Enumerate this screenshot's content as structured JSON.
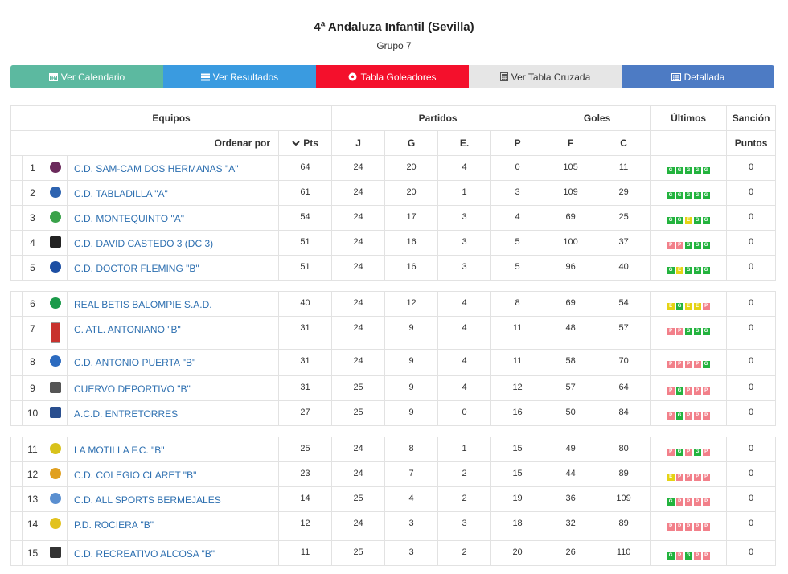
{
  "header": {
    "title": "4ª Andaluza Infantil (Sevilla)",
    "subtitle": "Grupo 7"
  },
  "buttons": [
    {
      "label": "Ver Calendario",
      "icon": "calendar-icon",
      "color": "#5cb9a0"
    },
    {
      "label": "Ver Resultados",
      "icon": "list-icon",
      "color": "#3a9be0"
    },
    {
      "label": "Tabla Goleadores",
      "icon": "soccer-ball-icon",
      "color": "#f4102c"
    },
    {
      "label": "Ver Tabla Cruzada",
      "icon": "calculator-icon",
      "color": "#e6e6e6"
    },
    {
      "label": "Detallada",
      "icon": "list-alt-icon",
      "color": "#4d7bc4"
    }
  ],
  "table": {
    "group_headers": {
      "equipos": "Equipos",
      "partidos": "Partidos",
      "goles": "Goles",
      "ultimos": "Últimos",
      "sancion": "Sanción"
    },
    "columns": {
      "ordenar": "Ordenar por",
      "pts": "Pts",
      "j": "J",
      "g": "G",
      "e": "E.",
      "p": "P",
      "f": "F",
      "c": "C",
      "puntos": "Puntos"
    },
    "rows": [
      {
        "pos": "1",
        "name": "C.D. SAM-CAM DOS HERMANAS \"A\"",
        "pts": "64",
        "j": "24",
        "g": "20",
        "e": "4",
        "p": "0",
        "f": "105",
        "c": "11",
        "last": [
          "G",
          "G",
          "G",
          "G",
          "G"
        ],
        "sancion": "0",
        "crest_color": "#6b2a5c"
      },
      {
        "pos": "2",
        "name": "C.D. TABLADILLA \"A\"",
        "pts": "61",
        "j": "24",
        "g": "20",
        "e": "1",
        "p": "3",
        "f": "109",
        "c": "29",
        "last": [
          "G",
          "G",
          "G",
          "G",
          "G"
        ],
        "sancion": "0",
        "crest_color": "#2d63b0"
      },
      {
        "pos": "3",
        "name": "C.D. MONTEQUINTO \"A\"",
        "pts": "54",
        "j": "24",
        "g": "17",
        "e": "3",
        "p": "4",
        "f": "69",
        "c": "25",
        "last": [
          "G",
          "G",
          "E",
          "G",
          "G"
        ],
        "sancion": "0",
        "crest_color": "#3aa24a"
      },
      {
        "pos": "4",
        "name": "C.D. DAVID CASTEDO 3 (DC 3)",
        "pts": "51",
        "j": "24",
        "g": "16",
        "e": "3",
        "p": "5",
        "f": "100",
        "c": "37",
        "last": [
          "P",
          "P",
          "G",
          "G",
          "G"
        ],
        "sancion": "0",
        "crest_color": "#222222"
      },
      {
        "pos": "5",
        "name": "C.D. DOCTOR FLEMING \"B\"",
        "pts": "51",
        "j": "24",
        "g": "16",
        "e": "3",
        "p": "5",
        "f": "96",
        "c": "40",
        "last": [
          "G",
          "E",
          "G",
          "G",
          "G"
        ],
        "sancion": "0",
        "crest_color": "#1d4fa3"
      },
      {
        "pos": "6",
        "name": "REAL BETIS BALOMPIE S.A.D.",
        "pts": "40",
        "j": "24",
        "g": "12",
        "e": "4",
        "p": "8",
        "f": "69",
        "c": "54",
        "last": [
          "E",
          "G",
          "E",
          "E",
          "P"
        ],
        "sancion": "0",
        "crest_color": "#1b9a4a"
      },
      {
        "pos": "7",
        "name": "C. ATL. ANTONIANO \"B\"",
        "pts": "31",
        "j": "24",
        "g": "9",
        "e": "4",
        "p": "11",
        "f": "48",
        "c": "57",
        "last": [
          "P",
          "P",
          "G",
          "G",
          "G"
        ],
        "sancion": "0",
        "crest_color": "#c8322e"
      },
      {
        "pos": "8",
        "name": "C.D. ANTONIO PUERTA \"B\"",
        "pts": "31",
        "j": "24",
        "g": "9",
        "e": "4",
        "p": "11",
        "f": "58",
        "c": "70",
        "last": [
          "P",
          "P",
          "P",
          "P",
          "G"
        ],
        "sancion": "0",
        "crest_color": "#2c6bc0"
      },
      {
        "pos": "9",
        "name": "CUERVO DEPORTIVO \"B\"",
        "pts": "31",
        "j": "25",
        "g": "9",
        "e": "4",
        "p": "12",
        "f": "57",
        "c": "64",
        "last": [
          "P",
          "G",
          "P",
          "P",
          "P"
        ],
        "sancion": "0",
        "crest_color": "#555555"
      },
      {
        "pos": "10",
        "name": "A.C.D. ENTRETORRES",
        "pts": "27",
        "j": "25",
        "g": "9",
        "e": "0",
        "p": "16",
        "f": "50",
        "c": "84",
        "last": [
          "P",
          "G",
          "P",
          "P",
          "P"
        ],
        "sancion": "0",
        "crest_color": "#2a4f8f"
      },
      {
        "pos": "11",
        "name": "LA MOTILLA F.C. \"B\"",
        "pts": "25",
        "j": "24",
        "g": "8",
        "e": "1",
        "p": "15",
        "f": "49",
        "c": "80",
        "last": [
          "P",
          "G",
          "P",
          "G",
          "P"
        ],
        "sancion": "0",
        "crest_color": "#d8c21a"
      },
      {
        "pos": "12",
        "name": "C.D. COLEGIO CLARET \"B\"",
        "pts": "23",
        "j": "24",
        "g": "7",
        "e": "2",
        "p": "15",
        "f": "44",
        "c": "89",
        "last": [
          "E",
          "P",
          "P",
          "P",
          "P"
        ],
        "sancion": "0",
        "crest_color": "#e0a020"
      },
      {
        "pos": "13",
        "name": "C.D. ALL SPORTS BERMEJALES",
        "pts": "14",
        "j": "25",
        "g": "4",
        "e": "2",
        "p": "19",
        "f": "36",
        "c": "109",
        "last": [
          "G",
          "P",
          "P",
          "P",
          "P"
        ],
        "sancion": "0",
        "crest_color": "#5a8fd0"
      },
      {
        "pos": "14",
        "name": "P.D. ROCIERA \"B\"",
        "pts": "12",
        "j": "24",
        "g": "3",
        "e": "3",
        "p": "18",
        "f": "32",
        "c": "89",
        "last": [
          "P",
          "P",
          "P",
          "P",
          "P"
        ],
        "sancion": "0",
        "crest_color": "#e2c21e"
      },
      {
        "pos": "15",
        "name": "C.D. RECREATIVO ALCOSA \"B\"",
        "pts": "11",
        "j": "25",
        "g": "3",
        "e": "2",
        "p": "20",
        "f": "26",
        "c": "110",
        "last": [
          "G",
          "P",
          "G",
          "P",
          "P"
        ],
        "sancion": "0",
        "crest_color": "#333333"
      }
    ]
  }
}
